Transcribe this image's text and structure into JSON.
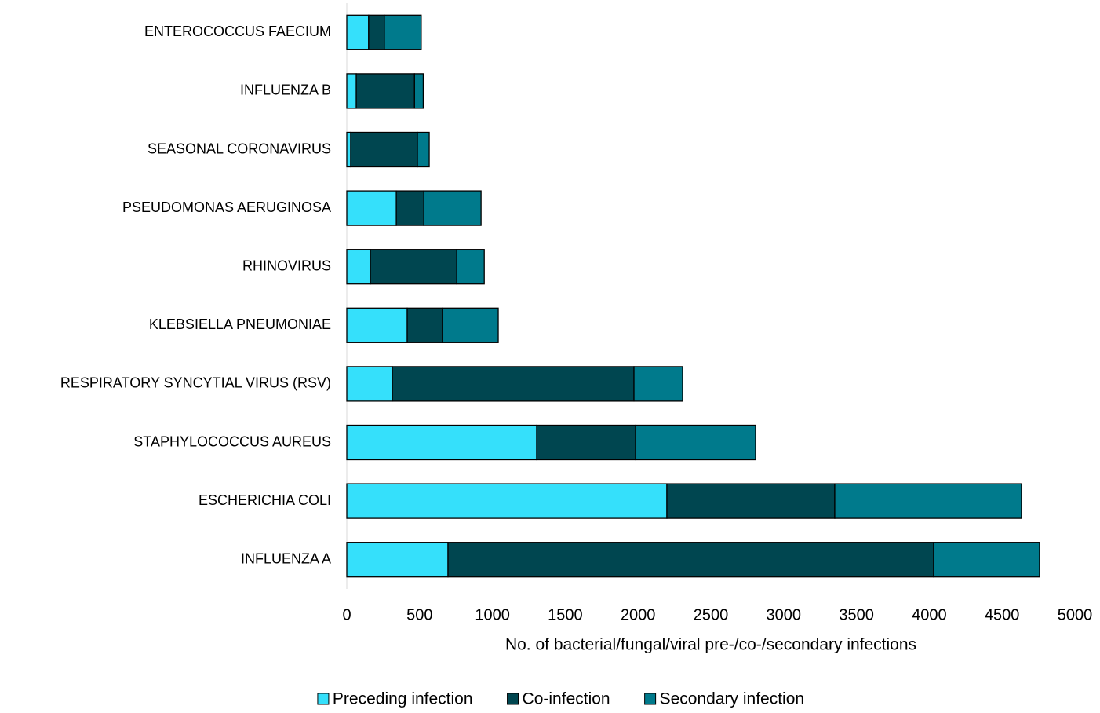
{
  "chart_data": {
    "type": "stacked-bar-horizontal",
    "categories": [
      "ENTEROCOCCUS FAECIUM",
      "INFLUENZA B",
      "SEASONAL CORONAVIRUS",
      "PSEUDOMONAS AERUGINOSA",
      "RHINOVIRUS",
      "KLEBSIELLA PNEUMONIAE",
      "RESPIRATORY SYNCYTIAL VIRUS (RSV)",
      "STAPHYLOCOCCUS AUREUS",
      "ESCHERICHIA COLI",
      "INFLUENZA A"
    ],
    "series": [
      {
        "name": "Preceding infection",
        "color": "#35e0fb",
        "values": [
          150,
          65,
          27,
          340,
          162,
          415,
          313,
          1304,
          2198,
          695
        ]
      },
      {
        "name": "Co-infection",
        "color": "#004650",
        "values": [
          108,
          400,
          458,
          189,
          593,
          242,
          1659,
          679,
          1153,
          3335
        ]
      },
      {
        "name": "Secondary infection",
        "color": "#007a8c",
        "values": [
          253,
          60,
          81,
          393,
          189,
          383,
          334,
          824,
          1282,
          727
        ]
      }
    ],
    "xlabel": "No. of bacterial/fungal/viral pre-/co-/secondary infections",
    "xlim": [
      0,
      5000
    ],
    "xticks": [
      0,
      500,
      1000,
      1500,
      2000,
      2500,
      3000,
      3500,
      4000,
      4500,
      5000
    ],
    "grid": false,
    "legend": "bottom"
  }
}
